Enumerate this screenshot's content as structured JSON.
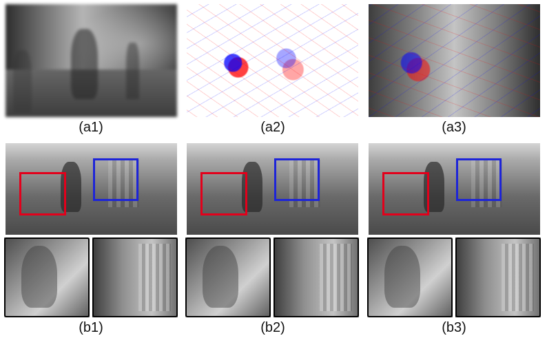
{
  "captions": {
    "a1": "(a1)",
    "a2": "(a2)",
    "a3": "(a3)",
    "b1": "(b1)",
    "b2": "(b2)",
    "b3": "(b3)"
  },
  "colors": {
    "highlight_red": "#e3001b",
    "highlight_blue": "#1d24d8"
  }
}
